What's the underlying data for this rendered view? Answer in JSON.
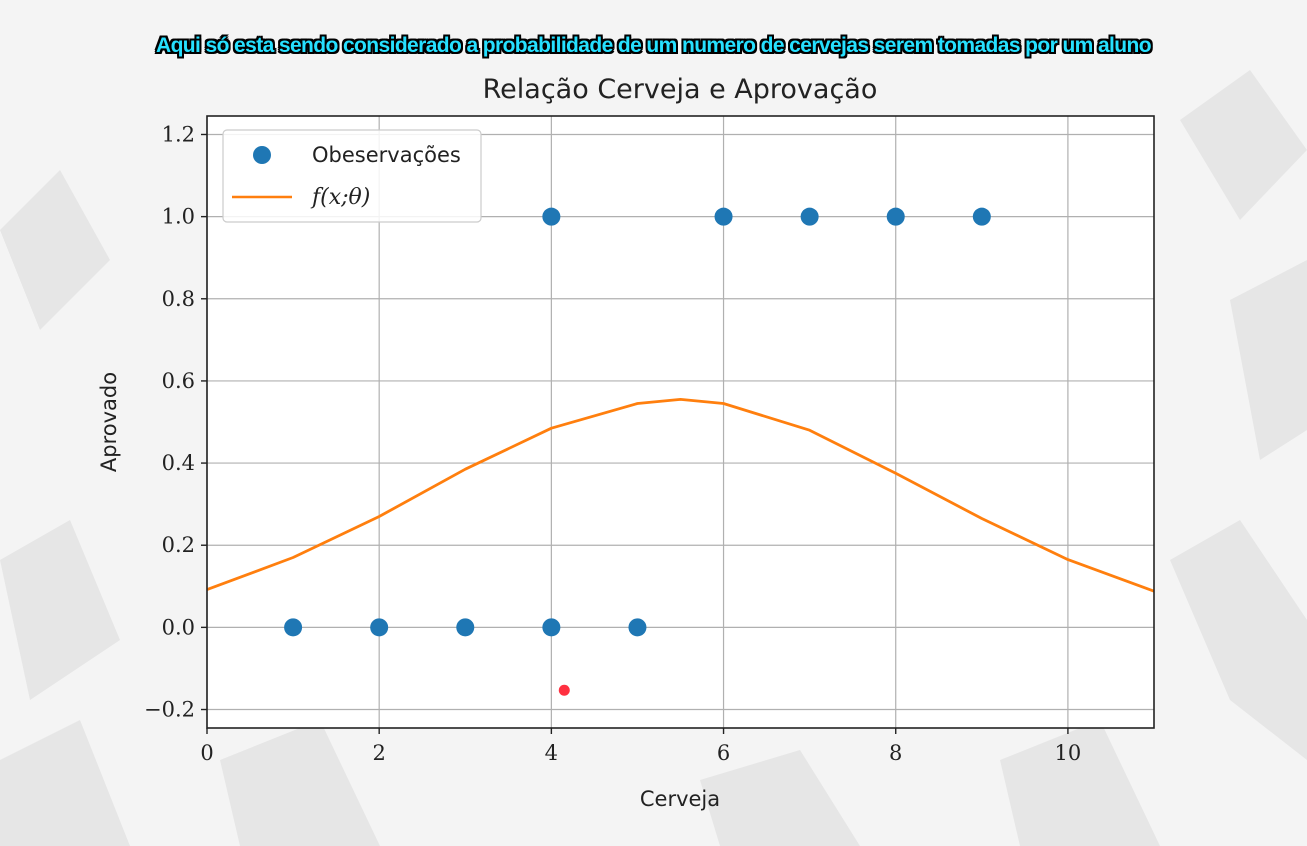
{
  "caption": "Aqui só esta sendo considerado a probabilidade de um numero de cervejas serem tomadas por um aluno",
  "chart_data": {
    "type": "scatter",
    "title": "Relação Cerveja e Aprovação",
    "xlabel": "Cerveja",
    "ylabel": "Aprovado",
    "xlim": [
      0,
      11
    ],
    "ylim": [
      -0.245,
      1.245
    ],
    "xticks": [
      0,
      2,
      4,
      6,
      8,
      10
    ],
    "xtick_labels": [
      "0",
      "2",
      "4",
      "6",
      "8",
      "10"
    ],
    "yticks": [
      -0.2,
      0.0,
      0.2,
      0.4,
      0.6,
      0.8,
      1.0,
      1.2
    ],
    "ytick_labels": [
      "−0.2",
      "0.0",
      "0.2",
      "0.4",
      "0.6",
      "0.8",
      "1.0",
      "1.2"
    ],
    "grid": true,
    "legend_position": "top-left",
    "series": [
      {
        "name": "Obeservações",
        "kind": "scatter",
        "color": "#1f77b4",
        "points": [
          [
            1,
            0
          ],
          [
            2,
            0
          ],
          [
            3,
            0
          ],
          [
            4,
            0
          ],
          [
            5,
            0
          ],
          [
            4,
            1
          ],
          [
            6,
            1
          ],
          [
            7,
            1
          ],
          [
            8,
            1
          ],
          [
            9,
            1
          ]
        ]
      },
      {
        "name": "f(x;θ)",
        "kind": "line",
        "color": "#ff7f0e",
        "points": [
          [
            0,
            0.092
          ],
          [
            1,
            0.17
          ],
          [
            2,
            0.27
          ],
          [
            3,
            0.385
          ],
          [
            4,
            0.485
          ],
          [
            5,
            0.545
          ],
          [
            5.5,
            0.555
          ],
          [
            6,
            0.545
          ],
          [
            7,
            0.48
          ],
          [
            8,
            0.375
          ],
          [
            9,
            0.265
          ],
          [
            10,
            0.165
          ],
          [
            11,
            0.088
          ]
        ]
      }
    ],
    "annotations": [
      {
        "kind": "marker",
        "x": 4.15,
        "y": -0.153,
        "color": "#ff3040"
      }
    ]
  }
}
